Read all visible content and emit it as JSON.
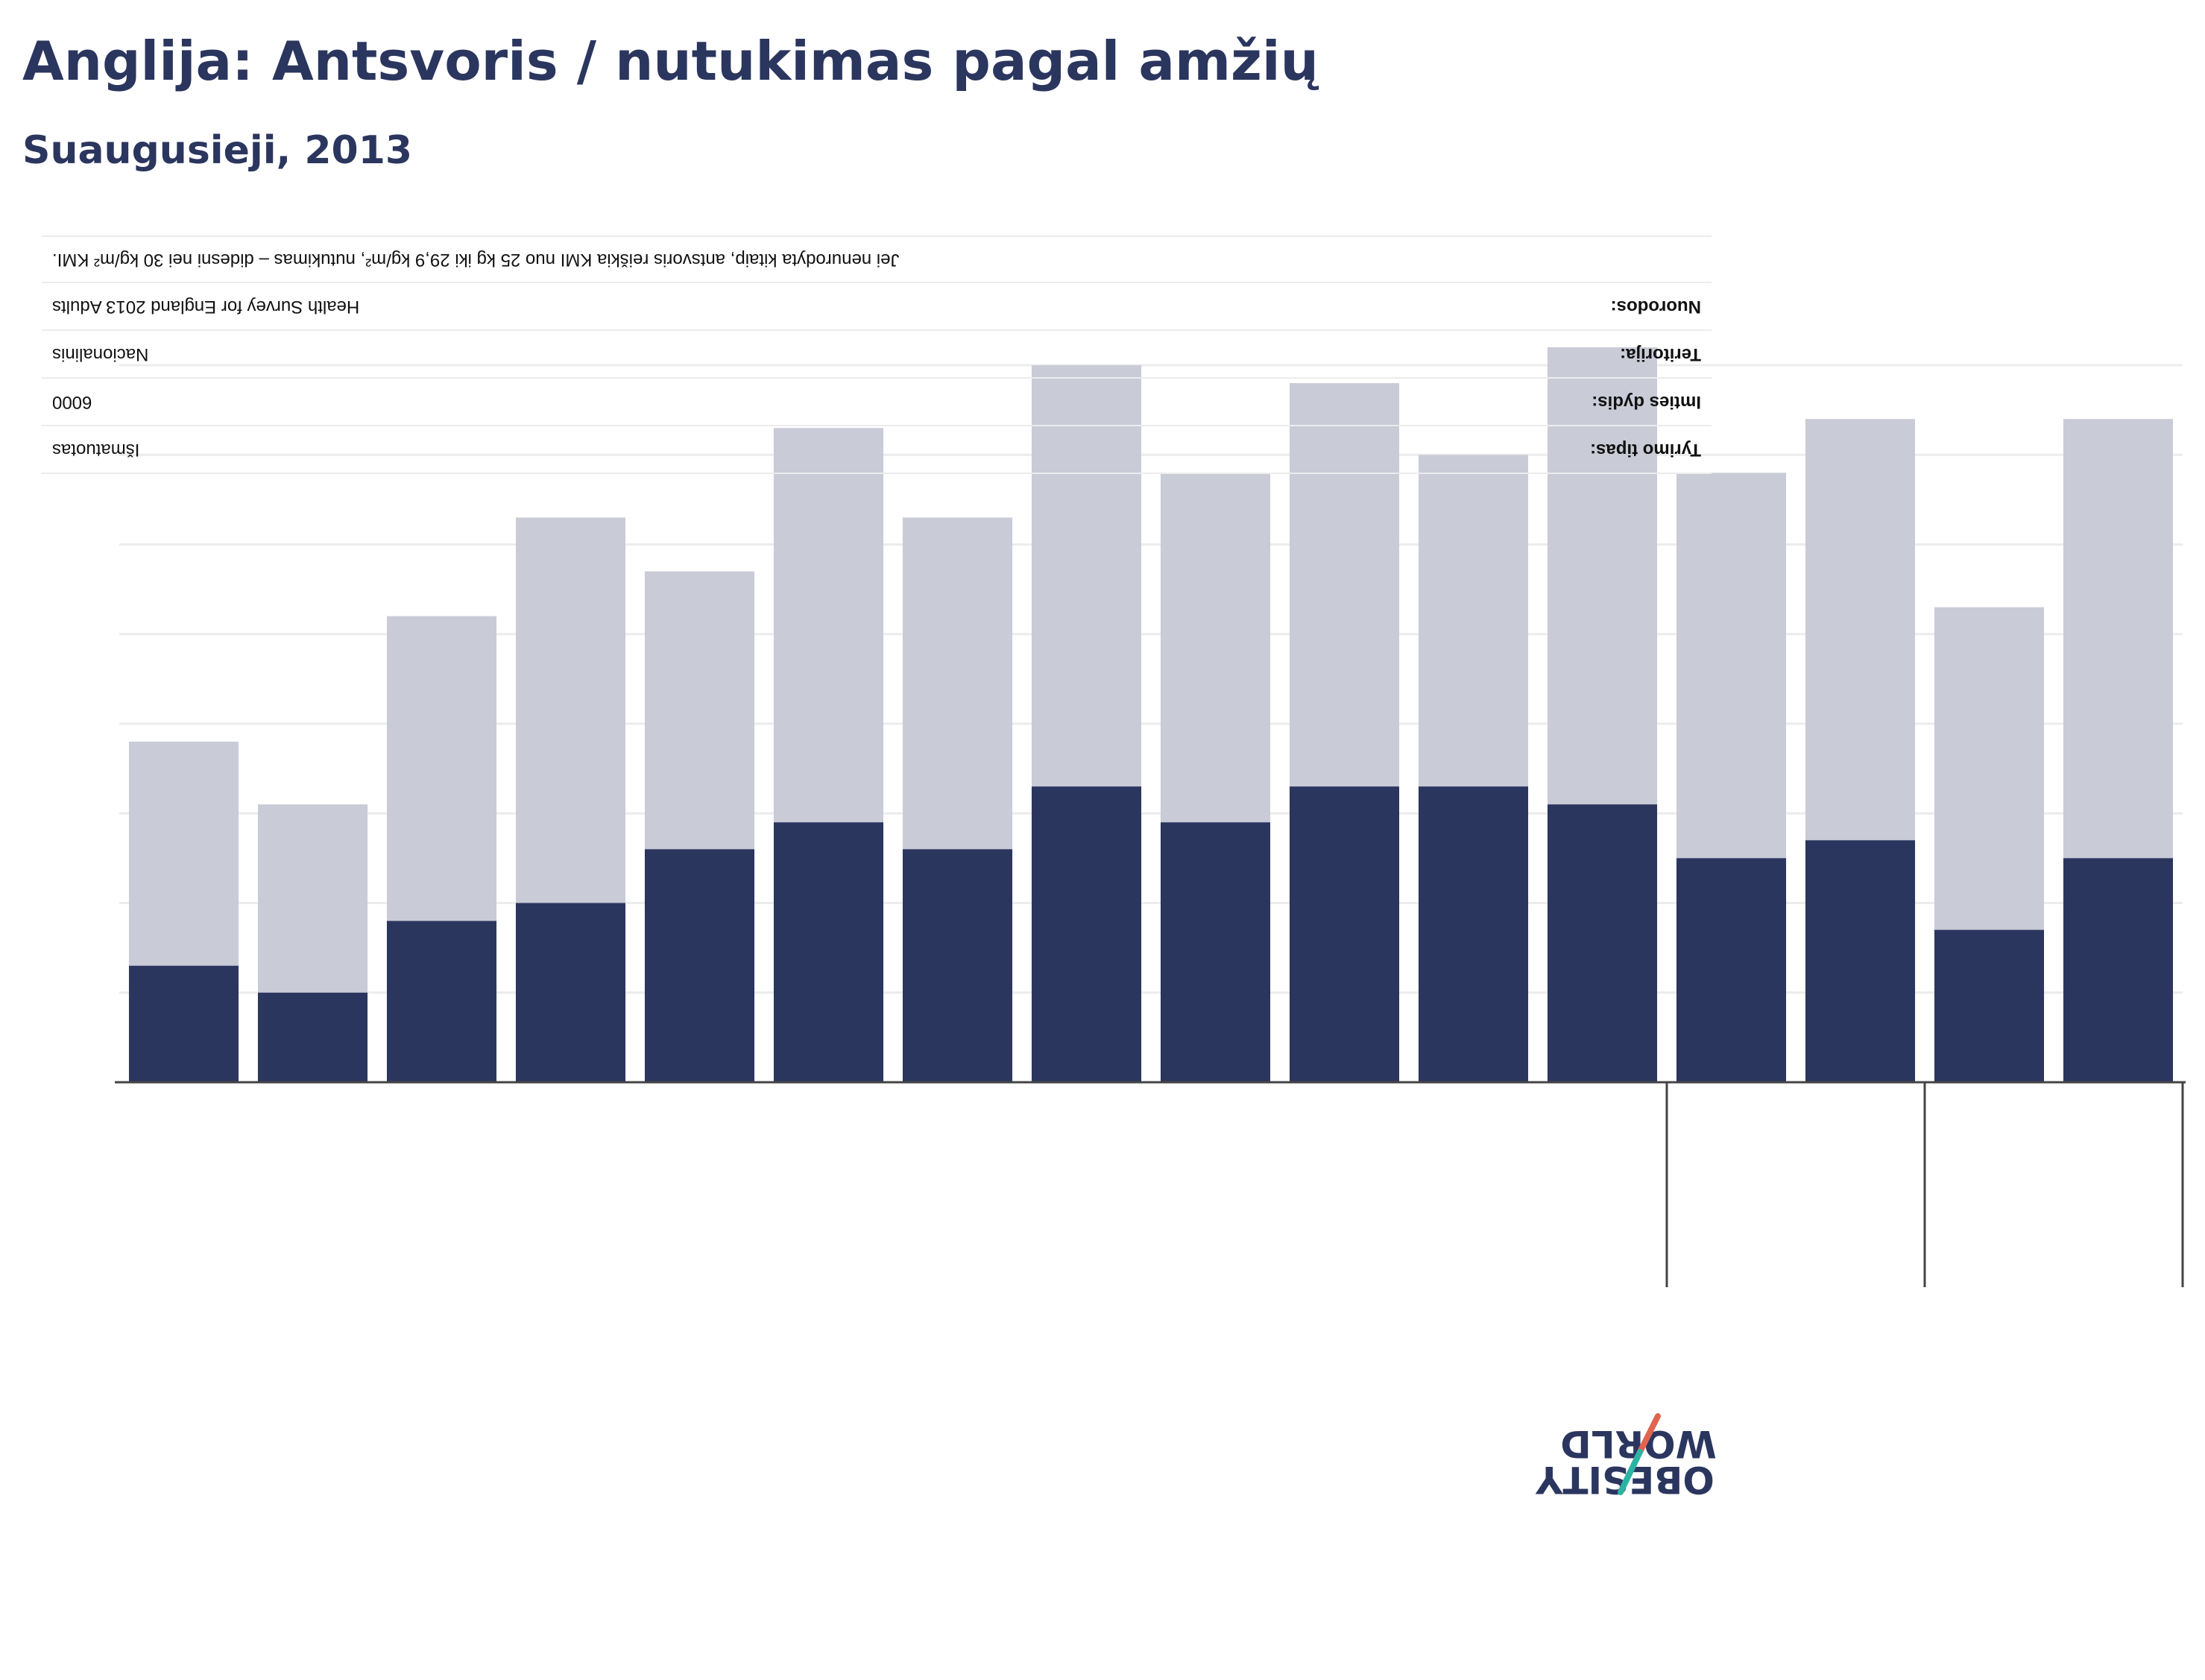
{
  "title": "Anglija: Antsvoris / nutukimas pagal amžių",
  "subtitle": "Suaugusieji, 2013",
  "metadata": {
    "type_label": "Tyrimo tipas:",
    "type_value": "Išmatuotas",
    "sample_label": "Imties dydis:",
    "sample_value": "6000",
    "territory_label": "Teritorija:",
    "territory_value": "Nacionalinis",
    "refs_label": "Nuorodos:",
    "refs_value": "Health Survey for England 2013 Adults",
    "note": "Jei nenurodyta kitaip, antsvoris reiškia KMI nuo 25 kg iki 29,9 kg/m², nutukimas – didesni nei 30 kg/m² KMI."
  },
  "logo": {
    "line1": "OBESITY",
    "line2": "WORLD"
  },
  "colors": {
    "overweight": "#c9cbd7",
    "obesity": "#2b365f",
    "grid": "#ececec",
    "axis": "#444444"
  },
  "chart_data": {
    "type": "bar",
    "stacked": true,
    "orientation": "inverted",
    "categories": [
      "",
      "",
      "",
      "",
      "",
      "",
      "",
      "",
      "",
      "",
      "",
      "",
      "",
      "",
      "",
      ""
    ],
    "series": [
      {
        "key": "obesity",
        "values": [
          13,
          10,
          18,
          20,
          26,
          29,
          26,
          33,
          29,
          33,
          33,
          31,
          25,
          27,
          17,
          25
        ]
      },
      {
        "key": "overweight",
        "values": [
          25,
          21,
          34,
          43,
          31,
          44,
          37,
          47,
          39,
          45,
          37,
          51,
          43,
          47,
          36,
          49
        ]
      }
    ],
    "ylim": [
      0,
      80
    ],
    "grid": true,
    "group_separators_after_index": [
      11,
      13,
      15
    ]
  }
}
